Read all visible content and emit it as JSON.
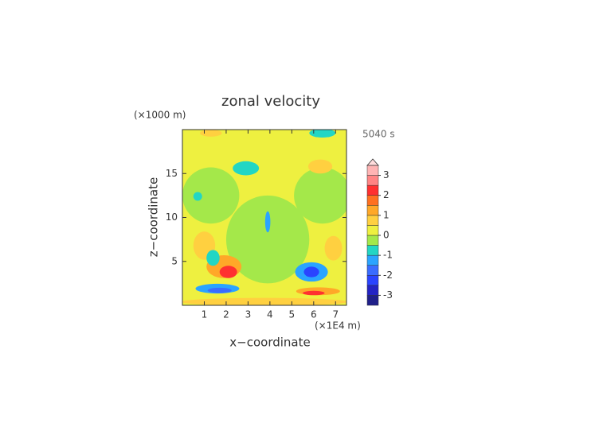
{
  "chart_data": {
    "type": "contour",
    "title": "zonal velocity",
    "x_label": "x−coordinate",
    "y_label": "z−coordinate",
    "x_unit": "(×1E4 m)",
    "y_unit": "(×1000 m)",
    "time_label": "5040 s",
    "xlim": [
      0,
      7.5
    ],
    "ylim": [
      0,
      20
    ],
    "xticks": [
      1,
      2,
      3,
      4,
      5,
      6,
      7
    ],
    "yticks": [
      5,
      10,
      15
    ],
    "background_value": 0.25,
    "levels": [
      -3.5,
      -3,
      -2.5,
      -2,
      -1.5,
      -1,
      -0.5,
      0,
      0.5,
      1,
      1.5,
      2,
      2.5,
      3,
      3.5
    ],
    "colors": [
      "#20208a",
      "#2424c4",
      "#2a44ff",
      "#3a6cff",
      "#2aa4ff",
      "#22d6c4",
      "#a4e84a",
      "#eef040",
      "#ffd040",
      "#ffa828",
      "#ff7020",
      "#ff3030",
      "#ff8484",
      "#ffb4b4"
    ],
    "extend_color": "#ffdcdc",
    "colorbar_ticks": [
      -3,
      -2,
      -1,
      0,
      1,
      2,
      3
    ],
    "features": [
      {
        "x": 1.3,
        "y": 12.5,
        "rx": 1.3,
        "ry": 3.2,
        "value": -0.25
      },
      {
        "x": 6.4,
        "y": 12.5,
        "rx": 1.3,
        "ry": 3.2,
        "value": -0.25
      },
      {
        "x": 3.9,
        "y": 7.5,
        "rx": 1.9,
        "ry": 5,
        "value": -0.25
      },
      {
        "x": 3.75,
        "y": 0.4,
        "rx": 3.8,
        "ry": 0.45,
        "value": 0.75
      },
      {
        "x": 1.0,
        "y": 6.8,
        "rx": 0.5,
        "ry": 1.6,
        "value": 0.75
      },
      {
        "x": 1.9,
        "y": 4.4,
        "rx": 0.8,
        "ry": 1.3,
        "value": 1.25
      },
      {
        "x": 2.1,
        "y": 3.8,
        "rx": 0.4,
        "ry": 0.7,
        "value": 2.25
      },
      {
        "x": 1.4,
        "y": 5.4,
        "rx": 0.3,
        "ry": 0.9,
        "value": -0.75
      },
      {
        "x": 1.6,
        "y": 1.9,
        "rx": 1.0,
        "ry": 0.55,
        "value": -1.25
      },
      {
        "x": 1.7,
        "y": 1.7,
        "rx": 0.55,
        "ry": 0.3,
        "value": -1.75
      },
      {
        "x": 5.9,
        "y": 3.8,
        "rx": 0.75,
        "ry": 1.1,
        "value": -1.25
      },
      {
        "x": 5.9,
        "y": 3.8,
        "rx": 0.35,
        "ry": 0.6,
        "value": -2.25
      },
      {
        "x": 6.9,
        "y": 6.5,
        "rx": 0.4,
        "ry": 1.4,
        "value": 0.75
      },
      {
        "x": 6.2,
        "y": 1.6,
        "rx": 1.0,
        "ry": 0.45,
        "value": 1.25
      },
      {
        "x": 6.0,
        "y": 1.4,
        "rx": 0.5,
        "ry": 0.25,
        "value": 2.25
      },
      {
        "x": 2.9,
        "y": 15.6,
        "rx": 0.6,
        "ry": 0.8,
        "value": -0.75
      },
      {
        "x": 6.4,
        "y": 19.6,
        "rx": 0.6,
        "ry": 0.5,
        "value": -0.75
      },
      {
        "x": 0.7,
        "y": 12.4,
        "rx": 0.2,
        "ry": 0.5,
        "value": -0.75
      },
      {
        "x": 6.3,
        "y": 15.8,
        "rx": 0.55,
        "ry": 0.8,
        "value": 0.75
      },
      {
        "x": 1.3,
        "y": 19.6,
        "rx": 0.5,
        "ry": 0.4,
        "value": 0.75
      },
      {
        "x": 3.9,
        "y": 9.5,
        "rx": 0.12,
        "ry": 1.2,
        "value": -1.25
      }
    ]
  }
}
